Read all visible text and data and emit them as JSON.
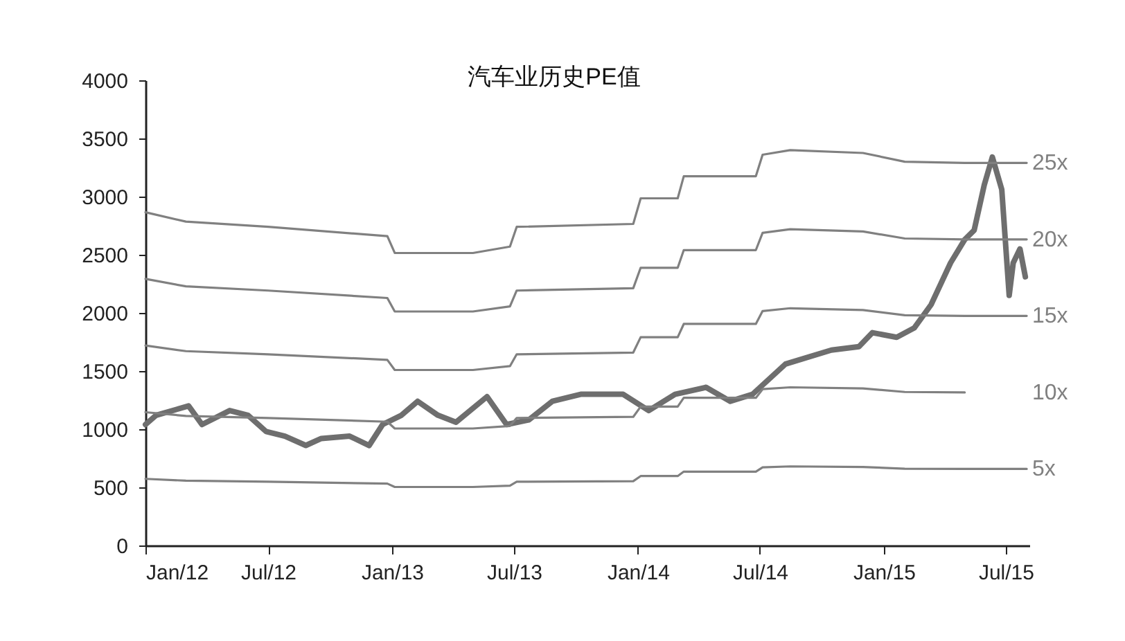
{
  "chart_data": {
    "type": "line",
    "title": "汽车业历史PE值",
    "xlim": [
      "2012-01-01",
      "2015-08-05"
    ],
    "xticks": [
      {
        "value": "2012-01-01",
        "label": "Jan/12"
      },
      {
        "value": "2012-07-01",
        "label": "Jul/12"
      },
      {
        "value": "2013-01-01",
        "label": "Jan/13"
      },
      {
        "value": "2013-07-01",
        "label": "Jul/13"
      },
      {
        "value": "2014-01-01",
        "label": "Jan/14"
      },
      {
        "value": "2014-07-01",
        "label": "Jul/14"
      },
      {
        "value": "2015-01-01",
        "label": "Jan/15"
      },
      {
        "value": "2015-07-01",
        "label": "Jul/15"
      }
    ],
    "ylim": [
      0,
      4000
    ],
    "yticks": [
      0,
      500,
      1000,
      1500,
      2000,
      2500,
      3000,
      3500,
      4000
    ],
    "marker": "none",
    "line_style": "solid",
    "series": [
      {
        "color": "#6e6e6e",
        "x": [
          "2012-01-01",
          "2012-01-17",
          "2012-03-05",
          "2012-03-25",
          "2012-05-05",
          "2012-06-01",
          "2012-06-28",
          "2012-07-26",
          "2012-08-26",
          "2012-09-18",
          "2012-10-30",
          "2012-11-28",
          "2012-12-18",
          "2013-01-15",
          "2013-02-08",
          "2013-03-10",
          "2013-04-06",
          "2013-05-22",
          "2013-06-20",
          "2013-07-23",
          "2013-08-27",
          "2013-10-08",
          "2013-12-10",
          "2014-01-17",
          "2014-02-25",
          "2014-04-12",
          "2014-05-18",
          "2014-06-20",
          "2014-08-08",
          "2014-10-15",
          "2014-11-25",
          "2014-12-15",
          "2015-01-20",
          "2015-02-15",
          "2015-03-12",
          "2015-04-10",
          "2015-05-01",
          "2015-05-15",
          "2015-05-30",
          "2015-06-11",
          "2015-06-25",
          "2015-07-06",
          "2015-07-12",
          "2015-07-22",
          "2015-07-30"
        ],
        "values": [
          1040,
          1120,
          1200,
          1040,
          1160,
          1120,
          980,
          940,
          860,
          920,
          940,
          860,
          1040,
          1120,
          1240,
          1120,
          1060,
          1280,
          1040,
          1080,
          1240,
          1300,
          1300,
          1160,
          1300,
          1360,
          1240,
          1300,
          1560,
          1680,
          1710,
          1830,
          1790,
          1870,
          2070,
          2430,
          2630,
          2710,
          3100,
          3340,
          3060,
          2150,
          2430,
          2550,
          2310
        ]
      },
      {
        "name": "25x",
        "color": "#808080",
        "x": [
          "2012-01-01",
          "2012-03-01",
          "2012-07-01",
          "2012-12-25",
          "2013-01-05",
          "2013-05-01",
          "2013-06-25",
          "2013-07-05",
          "2013-12-25",
          "2014-01-05",
          "2014-03-01",
          "2014-03-10",
          "2014-06-25",
          "2014-07-05",
          "2014-08-15",
          "2014-12-01",
          "2015-02-01",
          "2015-05-01",
          "2015-08-01"
        ],
        "values": [
          2865,
          2785,
          2740,
          2660,
          2515,
          2515,
          2570,
          2740,
          2765,
          2985,
          2985,
          3175,
          3175,
          3360,
          3400,
          3375,
          3300,
          3290,
          3290
        ]
      },
      {
        "name": "20x",
        "color": "#808080",
        "x": [
          "2012-01-01",
          "2012-03-01",
          "2012-07-01",
          "2012-12-25",
          "2013-01-05",
          "2013-05-01",
          "2013-06-25",
          "2013-07-05",
          "2013-12-25",
          "2014-01-05",
          "2014-03-01",
          "2014-03-10",
          "2014-06-25",
          "2014-07-05",
          "2014-08-15",
          "2014-12-01",
          "2015-02-01",
          "2015-05-01",
          "2015-08-01"
        ],
        "values": [
          2292,
          2228,
          2192,
          2128,
          2012,
          2012,
          2056,
          2192,
          2212,
          2388,
          2388,
          2540,
          2540,
          2688,
          2720,
          2700,
          2640,
          2632,
          2632
        ]
      },
      {
        "name": "15x",
        "color": "#808080",
        "x": [
          "2012-01-01",
          "2012-03-01",
          "2012-07-01",
          "2012-12-25",
          "2013-01-05",
          "2013-05-01",
          "2013-06-25",
          "2013-07-05",
          "2013-12-25",
          "2014-01-05",
          "2014-03-01",
          "2014-03-10",
          "2014-06-25",
          "2014-07-05",
          "2014-08-15",
          "2014-12-01",
          "2015-02-01",
          "2015-05-01",
          "2015-08-01"
        ],
        "values": [
          1719,
          1671,
          1644,
          1596,
          1509,
          1509,
          1542,
          1644,
          1659,
          1791,
          1791,
          1905,
          1905,
          2016,
          2040,
          2025,
          1980,
          1974,
          1974
        ]
      },
      {
        "name": "10x",
        "color": "#808080",
        "x": [
          "2012-01-01",
          "2012-03-01",
          "2012-07-01",
          "2012-12-25",
          "2013-01-05",
          "2013-05-01",
          "2013-06-25",
          "2013-07-05",
          "2013-12-25",
          "2014-01-05",
          "2014-03-01",
          "2014-03-10",
          "2014-06-25",
          "2014-07-05",
          "2014-08-15",
          "2014-12-01",
          "2015-02-01",
          "2015-05-01"
        ],
        "values": [
          1146,
          1114,
          1096,
          1064,
          1006,
          1006,
          1028,
          1096,
          1106,
          1194,
          1194,
          1270,
          1270,
          1344,
          1360,
          1350,
          1320,
          1316
        ]
      },
      {
        "name": "5x",
        "color": "#808080",
        "x": [
          "2012-01-01",
          "2012-03-01",
          "2012-07-01",
          "2012-12-25",
          "2013-01-05",
          "2013-05-01",
          "2013-06-25",
          "2013-07-05",
          "2013-12-25",
          "2014-01-05",
          "2014-03-01",
          "2014-03-10",
          "2014-06-25",
          "2014-07-05",
          "2014-08-15",
          "2014-12-01",
          "2015-02-01",
          "2015-05-01",
          "2015-08-01"
        ],
        "values": [
          573,
          557,
          548,
          532,
          503,
          503,
          514,
          548,
          553,
          597,
          597,
          635,
          635,
          672,
          680,
          675,
          660,
          658,
          658
        ]
      }
    ]
  }
}
